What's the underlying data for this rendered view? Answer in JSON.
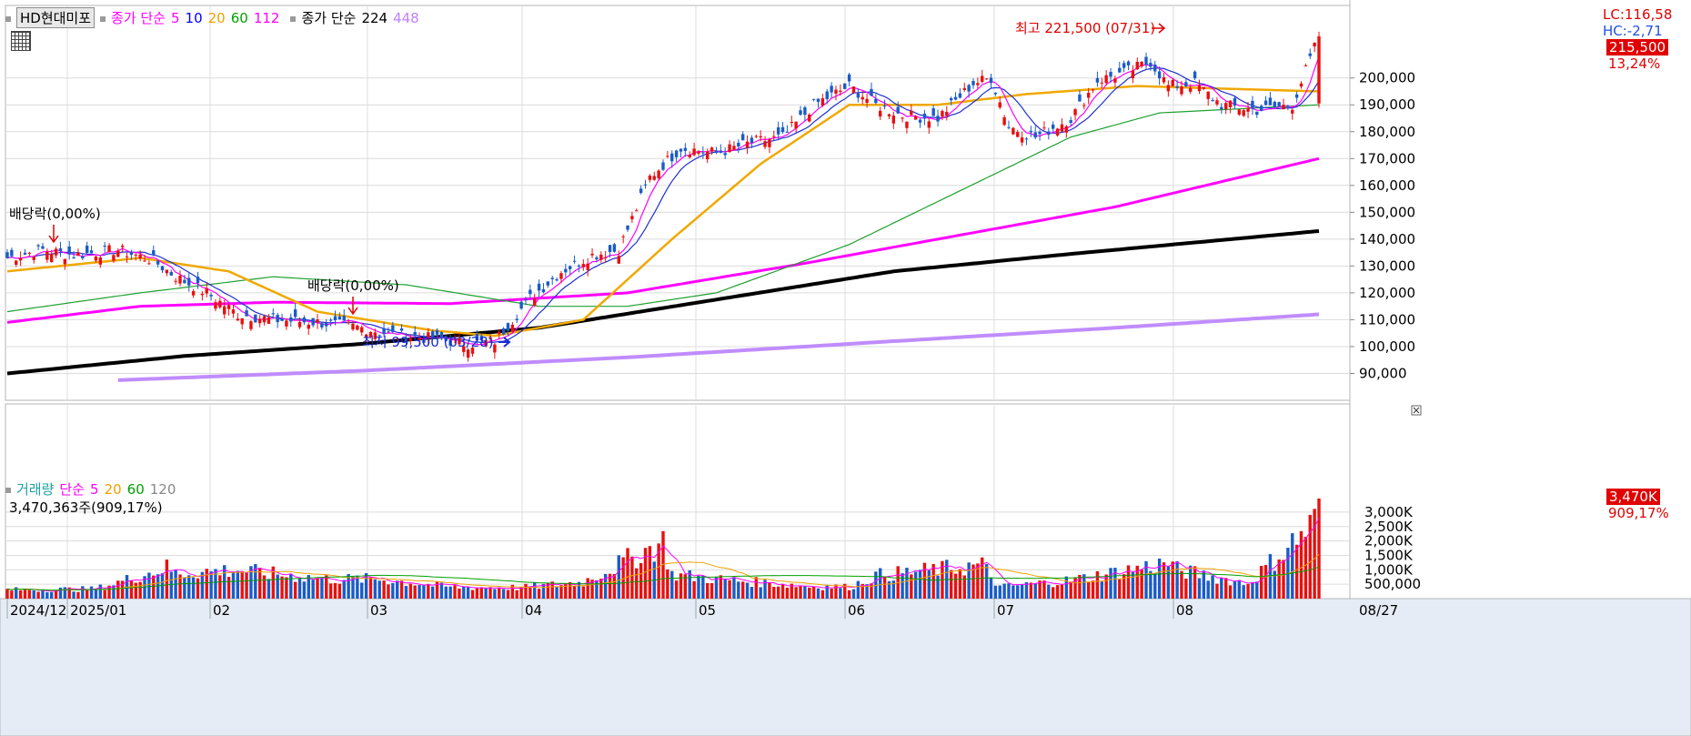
{
  "legend": {
    "symbol": "HD현대미포",
    "ma_label": "종가 단순",
    "ma_periods": [
      "5",
      "10",
      "20",
      "60",
      "112"
    ],
    "ma_colors": [
      "#ff00ff",
      "#0000ff",
      "#f0a000",
      "#00a000",
      "#ff00ff"
    ],
    "ma_label2": "종가 단순",
    "ma_periods2": [
      "224",
      "448"
    ],
    "ma_colors2": [
      "#000000",
      "#c080ff"
    ]
  },
  "volume_legend": {
    "title": "거래량",
    "ma_label": "단순",
    "ma_periods": [
      "5",
      "20",
      "60",
      "120"
    ],
    "ma_colors": [
      "#ff00ff",
      "#f0a000",
      "#00a000",
      "#888888"
    ],
    "readout": "3,470,363주(909,17%)"
  },
  "right_panel": {
    "lc": "LC:116,58",
    "hc": "HC:-2,71",
    "last_price": "215,500",
    "change_pct": "13,24%",
    "vol_last": "3,470K",
    "vol_pct": "909,17%"
  },
  "annotations": {
    "high": "최고 221,500 (07/31)",
    "low": "최저 99,500 (03/28)",
    "dividend1": "배당락(0,00%)",
    "dividend2": "배당락(0,00%)"
  },
  "axis": {
    "price_ticks": [
      "200,000",
      "190,000",
      "180,000",
      "170,000",
      "160,000",
      "150,000",
      "140,000",
      "130,000",
      "120,000",
      "110,000",
      "100,000",
      "90,000"
    ],
    "volume_ticks": [
      "3,000K",
      "2,500K",
      "2,000K",
      "1,500K",
      "1,000K",
      "500,000"
    ],
    "date_labels": [
      "2024/12",
      "2025/01",
      "02",
      "03",
      "04",
      "05",
      "06",
      "07",
      "08"
    ],
    "current_date": "08/27"
  },
  "colors": {
    "up": "#e81010",
    "down": "#1a5cc8",
    "grid": "#dcdcdc"
  },
  "chart_data": {
    "type": "candlestick",
    "price_range": [
      80000,
      227000
    ],
    "volume_range": [
      0,
      3470363
    ],
    "months": [
      "2024/12",
      "2025/01",
      "02",
      "03",
      "04",
      "05",
      "06",
      "07",
      "08"
    ],
    "ohlc_anchors": [
      [
        0,
        133000
      ],
      [
        8,
        136000
      ],
      [
        15,
        134000
      ],
      [
        25,
        136000
      ],
      [
        33,
        132000
      ],
      [
        38,
        126000
      ],
      [
        45,
        120000
      ],
      [
        52,
        112000
      ],
      [
        60,
        110000
      ],
      [
        70,
        109000
      ],
      [
        80,
        107000
      ],
      [
        88,
        104000
      ],
      [
        96,
        103000
      ],
      [
        104,
        101000
      ],
      [
        110,
        102000
      ],
      [
        118,
        118000
      ],
      [
        125,
        128000
      ],
      [
        132,
        134000
      ],
      [
        138,
        136000
      ],
      [
        145,
        163000
      ],
      [
        152,
        174000
      ],
      [
        160,
        172000
      ],
      [
        168,
        176000
      ],
      [
        175,
        178000
      ],
      [
        182,
        190000
      ],
      [
        190,
        197000
      ],
      [
        196,
        190000
      ],
      [
        202,
        186000
      ],
      [
        210,
        185000
      ],
      [
        218,
        198000
      ],
      [
        222,
        200000
      ],
      [
        226,
        182000
      ],
      [
        232,
        178000
      ],
      [
        240,
        185000
      ],
      [
        246,
        199000
      ],
      [
        252,
        202000
      ],
      [
        258,
        206000
      ],
      [
        262,
        197000
      ],
      [
        268,
        198000
      ],
      [
        274,
        190000
      ],
      [
        282,
        188000
      ],
      [
        290,
        190000
      ],
      [
        296,
        215500
      ]
    ],
    "volume_anchors": [
      [
        0,
        380000
      ],
      [
        20,
        420000
      ],
      [
        36,
        1350000
      ],
      [
        38,
        1100000
      ],
      [
        52,
        1250000
      ],
      [
        58,
        1100000
      ],
      [
        64,
        1000000
      ],
      [
        72,
        850000
      ],
      [
        84,
        850000
      ],
      [
        100,
        500000
      ],
      [
        116,
        480000
      ],
      [
        130,
        720000
      ],
      [
        148,
        2450000
      ],
      [
        150,
        1050000
      ],
      [
        160,
        850000
      ],
      [
        180,
        550000
      ],
      [
        190,
        500000
      ],
      [
        196,
        1000000
      ],
      [
        220,
        1450000
      ],
      [
        224,
        500000
      ],
      [
        240,
        800000
      ],
      [
        262,
        1550000
      ],
      [
        264,
        1250000
      ],
      [
        280,
        650000
      ],
      [
        296,
        3470363
      ]
    ],
    "ma_curves": {
      "ma112": [
        [
          0,
          109000
        ],
        [
          30,
          115000
        ],
        [
          60,
          116500
        ],
        [
          100,
          116000
        ],
        [
          140,
          120000
        ],
        [
          180,
          131000
        ],
        [
          220,
          143000
        ],
        [
          250,
          152000
        ],
        [
          296,
          170000
        ]
      ],
      "ma224": [
        [
          0,
          90000
        ],
        [
          40,
          96500
        ],
        [
          80,
          101000
        ],
        [
          120,
          107000
        ],
        [
          160,
          117500
        ],
        [
          200,
          128000
        ],
        [
          240,
          134500
        ],
        [
          296,
          143000
        ]
      ],
      "ma448": [
        [
          25,
          87500
        ],
        [
          80,
          91000
        ],
        [
          140,
          96000
        ],
        [
          200,
          102000
        ],
        [
          250,
          107000
        ],
        [
          296,
          112000
        ]
      ],
      "ma60": [
        [
          0,
          113000
        ],
        [
          30,
          120000
        ],
        [
          60,
          126000
        ],
        [
          90,
          123000
        ],
        [
          120,
          115000
        ],
        [
          140,
          115000
        ],
        [
          160,
          120000
        ],
        [
          190,
          138000
        ],
        [
          220,
          162000
        ],
        [
          240,
          178000
        ],
        [
          260,
          187000
        ],
        [
          296,
          190000
        ]
      ],
      "ma20": [
        [
          0,
          128000
        ],
        [
          30,
          133000
        ],
        [
          50,
          128000
        ],
        [
          70,
          113000
        ],
        [
          96,
          106000
        ],
        [
          110,
          104000
        ],
        [
          130,
          110000
        ],
        [
          150,
          140000
        ],
        [
          170,
          168000
        ],
        [
          190,
          190000
        ],
        [
          210,
          190000
        ],
        [
          230,
          194000
        ],
        [
          255,
          197000
        ],
        [
          275,
          196000
        ],
        [
          296,
          195000
        ]
      ]
    }
  }
}
